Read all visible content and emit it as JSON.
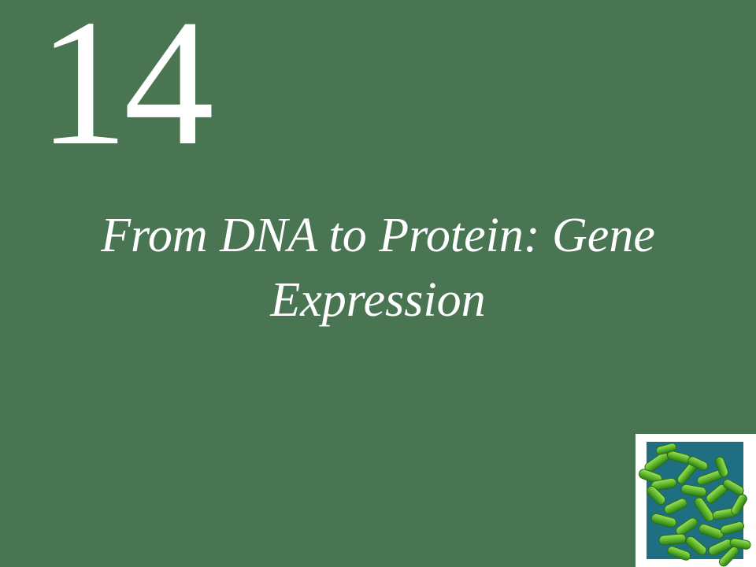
{
  "slide": {
    "chapter_number": "14",
    "chapter_title": "From DNA to Protein: Gene Expression"
  },
  "image": {
    "icon": "bacteria-micrograph-image",
    "frame_color": "#ffffff",
    "panel_color": "#1e6f82",
    "bacteria_color": "#5fb82e"
  },
  "colors": {
    "background": "#4a7553",
    "text": "#ffffff"
  }
}
